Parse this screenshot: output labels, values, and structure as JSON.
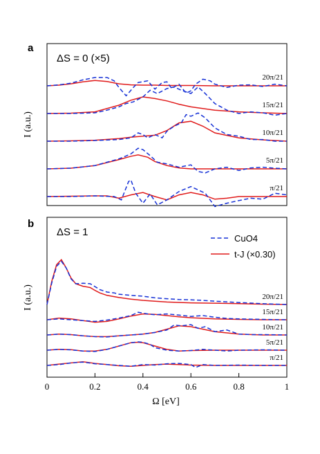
{
  "colors": {
    "cuo4": "#1530d6",
    "tj": "#e01a1a",
    "frame": "#000000"
  },
  "chart_data": [
    {
      "panel": "a",
      "type": "line",
      "title": "ΔS = 0 (×5)",
      "xlabel": "",
      "ylabel": "I (a.u.)",
      "xlim": [
        0,
        1
      ],
      "xticks": [],
      "legend": null,
      "traces": [
        {
          "k": "20π/21",
          "offset": 4,
          "cuo4": {
            "x": [
              0,
              0.05,
              0.1,
              0.15,
              0.2,
              0.25,
              0.28,
              0.3,
              0.33,
              0.36,
              0.38,
              0.42,
              0.45,
              0.48,
              0.5,
              0.52,
              0.55,
              0.58,
              0.6,
              0.62,
              0.65,
              0.68,
              0.7,
              0.75,
              0.8,
              0.85,
              0.9,
              0.95,
              1.0
            ],
            "y": [
              0,
              0.03,
              0.08,
              0.18,
              0.25,
              0.25,
              0.15,
              -0.05,
              -0.3,
              -0.05,
              0.1,
              0.15,
              -0.1,
              0.1,
              0.12,
              -0.08,
              0.05,
              -0.22,
              -0.15,
              0.05,
              0.2,
              0.15,
              0.05,
              -0.05,
              0.02,
              0.03,
              -0.02,
              0.05,
              0
            ]
          },
          "tj": {
            "x": [
              0,
              0.05,
              0.1,
              0.15,
              0.2,
              0.25,
              0.3,
              0.35,
              0.4,
              0.45,
              0.5,
              0.6,
              0.7,
              0.8,
              0.9,
              1.0
            ],
            "y": [
              0,
              0.02,
              0.06,
              0.12,
              0.16,
              0.13,
              0.06,
              0.03,
              0.02,
              0.02,
              0.01,
              0.01,
              0.0,
              0.0,
              0.0,
              0.0
            ]
          }
        },
        {
          "k": "15π/21",
          "offset": 3,
          "cuo4": {
            "x": [
              0,
              0.1,
              0.2,
              0.25,
              0.3,
              0.33,
              0.36,
              0.4,
              0.43,
              0.46,
              0.5,
              0.53,
              0.56,
              0.6,
              0.63,
              0.66,
              0.7,
              0.75,
              0.8,
              0.85,
              0.9,
              0.95,
              1.0
            ],
            "y": [
              0,
              0,
              0.02,
              0.1,
              0.2,
              0.3,
              0.35,
              0.5,
              0.7,
              0.6,
              0.75,
              0.8,
              0.7,
              0.6,
              0.8,
              0.6,
              0.3,
              0.1,
              0.0,
              0.05,
              0.02,
              -0.05,
              0
            ]
          },
          "tj": {
            "x": [
              0,
              0.1,
              0.2,
              0.3,
              0.35,
              0.4,
              0.45,
              0.5,
              0.55,
              0.6,
              0.7,
              0.8,
              0.9,
              1.0
            ],
            "y": [
              0,
              0.01,
              0.05,
              0.25,
              0.4,
              0.5,
              0.45,
              0.38,
              0.28,
              0.2,
              0.1,
              0.05,
              0.02,
              0
            ]
          }
        },
        {
          "k": "10π/21",
          "offset": 2,
          "cuo4": {
            "x": [
              0,
              0.1,
              0.2,
              0.3,
              0.35,
              0.38,
              0.4,
              0.42,
              0.45,
              0.48,
              0.5,
              0.53,
              0.56,
              0.58,
              0.6,
              0.63,
              0.66,
              0.7,
              0.75,
              0.8,
              0.85,
              0.9,
              0.95,
              1.0
            ],
            "y": [
              0,
              0,
              0.02,
              0.05,
              0.1,
              0.25,
              0.2,
              0.1,
              0.2,
              0.1,
              0.3,
              0.45,
              0.55,
              0.8,
              0.75,
              0.85,
              0.7,
              0.4,
              0.2,
              0.15,
              0.05,
              0.05,
              0.0,
              0
            ]
          },
          "tj": {
            "x": [
              0,
              0.1,
              0.2,
              0.3,
              0.35,
              0.4,
              0.45,
              0.5,
              0.55,
              0.6,
              0.65,
              0.7,
              0.8,
              0.9,
              1.0
            ],
            "y": [
              0,
              0.01,
              0.03,
              0.08,
              0.12,
              0.15,
              0.18,
              0.32,
              0.55,
              0.6,
              0.45,
              0.25,
              0.1,
              0.04,
              0
            ]
          }
        },
        {
          "k": "5π/21",
          "offset": 1,
          "cuo4": {
            "x": [
              0,
              0.1,
              0.2,
              0.3,
              0.35,
              0.38,
              0.4,
              0.43,
              0.46,
              0.5,
              0.55,
              0.6,
              0.63,
              0.66,
              0.7,
              0.75,
              0.8,
              0.85,
              0.9,
              0.95,
              1.0
            ],
            "y": [
              0,
              0.02,
              0.1,
              0.3,
              0.45,
              0.62,
              0.58,
              0.4,
              0.2,
              0.15,
              0.05,
              0.12,
              -0.08,
              -0.12,
              0.0,
              0.05,
              -0.05,
              0.03,
              0.05,
              0.02,
              0
            ]
          },
          "tj": {
            "x": [
              0,
              0.1,
              0.2,
              0.3,
              0.35,
              0.38,
              0.42,
              0.45,
              0.5,
              0.55,
              0.6,
              0.7,
              0.8,
              0.9,
              1.0
            ],
            "y": [
              0,
              0.02,
              0.1,
              0.28,
              0.38,
              0.42,
              0.35,
              0.22,
              0.1,
              0.03,
              0.0,
              0.0,
              0.0,
              0.0,
              0
            ]
          }
        },
        {
          "k": "π/21",
          "offset": 0,
          "cuo4": {
            "x": [
              0,
              0.1,
              0.2,
              0.28,
              0.31,
              0.34,
              0.35,
              0.37,
              0.4,
              0.43,
              0.46,
              0.5,
              0.55,
              0.6,
              0.63,
              0.66,
              0.7,
              0.75,
              0.8,
              0.85,
              0.9,
              0.95,
              1.0
            ],
            "y": [
              0,
              0,
              0.02,
              0.0,
              -0.1,
              0.45,
              0.5,
              0.1,
              -0.2,
              0.08,
              -0.25,
              -0.1,
              0.15,
              0.3,
              0.2,
              0.1,
              -0.3,
              -0.2,
              -0.12,
              -0.05,
              -0.08,
              0.1,
              0.05
            ]
          },
          "tj": {
            "x": [
              0,
              0.1,
              0.2,
              0.25,
              0.3,
              0.35,
              0.4,
              0.45,
              0.5,
              0.55,
              0.6,
              0.65,
              0.7,
              0.75,
              0.8,
              0.9,
              1.0
            ],
            "y": [
              0,
              0.01,
              0.02,
              0.02,
              -0.05,
              0.05,
              0.12,
              0.0,
              -0.1,
              0.05,
              0.12,
              0.05,
              -0.08,
              -0.05,
              0.0,
              0.0,
              0
            ]
          }
        }
      ]
    },
    {
      "panel": "b",
      "type": "line",
      "title": "ΔS = 1",
      "xlabel": "Ω [eV]",
      "ylabel": "I (a.u.)",
      "xlim": [
        0,
        1
      ],
      "xticks": [
        "0",
        "0.2",
        "0.4",
        "0.6",
        "0.8",
        "1"
      ],
      "legend": {
        "position": "top-right",
        "entries": [
          "CuO4",
          "t-J (×0.30)"
        ]
      },
      "traces": [
        {
          "k": "20π/21",
          "offset": 4,
          "cuo4": {
            "x": [
              0,
              0.02,
              0.04,
              0.06,
              0.08,
              0.1,
              0.12,
              0.15,
              0.18,
              0.2,
              0.22,
              0.25,
              0.28,
              0.3,
              0.35,
              0.4,
              0.45,
              0.5,
              0.55,
              0.6,
              0.65,
              0.7,
              0.8,
              0.9,
              1.0
            ],
            "y": [
              0,
              1.3,
              2.3,
              2.6,
              2.2,
              1.55,
              1.25,
              1.28,
              1.25,
              1.08,
              0.9,
              0.75,
              0.7,
              0.62,
              0.55,
              0.5,
              0.4,
              0.35,
              0.3,
              0.28,
              0.25,
              0.2,
              0.12,
              0.05,
              0
            ]
          },
          "tj": {
            "x": [
              0,
              0.02,
              0.04,
              0.06,
              0.08,
              0.1,
              0.12,
              0.15,
              0.18,
              0.2,
              0.22,
              0.25,
              0.3,
              0.35,
              0.4,
              0.45,
              0.5,
              0.6,
              0.7,
              0.8,
              0.9,
              1.0
            ],
            "y": [
              0,
              1.4,
              2.4,
              2.7,
              2.2,
              1.6,
              1.25,
              1.1,
              1.02,
              0.85,
              0.7,
              0.55,
              0.42,
              0.32,
              0.25,
              0.2,
              0.15,
              0.1,
              0.08,
              0.05,
              0.02,
              0
            ]
          }
        },
        {
          "k": "15π/21",
          "offset": 3,
          "cuo4": {
            "x": [
              0,
              0.05,
              0.1,
              0.15,
              0.2,
              0.25,
              0.3,
              0.35,
              0.38,
              0.4,
              0.42,
              0.45,
              0.5,
              0.55,
              0.6,
              0.65,
              0.7,
              0.75,
              0.8,
              0.9,
              1.0
            ],
            "y": [
              0,
              0.05,
              0.0,
              -0.05,
              -0.1,
              -0.02,
              0.1,
              0.25,
              0.45,
              0.4,
              0.35,
              0.3,
              0.35,
              0.28,
              0.2,
              0.25,
              0.15,
              0.08,
              0.05,
              0.02,
              0
            ]
          },
          "tj": {
            "x": [
              0,
              0.05,
              0.1,
              0.15,
              0.2,
              0.25,
              0.3,
              0.35,
              0.4,
              0.45,
              0.5,
              0.55,
              0.6,
              0.7,
              0.8,
              0.9,
              1.0
            ],
            "y": [
              0,
              0.1,
              0.05,
              -0.05,
              -0.15,
              -0.1,
              0.05,
              0.22,
              0.35,
              0.32,
              0.25,
              0.18,
              0.12,
              0.05,
              0.02,
              0.0,
              0
            ]
          }
        },
        {
          "k": "10π/21",
          "offset": 2,
          "cuo4": {
            "x": [
              0,
              0.05,
              0.1,
              0.15,
              0.2,
              0.25,
              0.3,
              0.35,
              0.4,
              0.45,
              0.5,
              0.53,
              0.56,
              0.6,
              0.63,
              0.66,
              0.7,
              0.75,
              0.8,
              0.85,
              0.9,
              1.0
            ],
            "y": [
              0,
              0.05,
              0.02,
              -0.05,
              -0.1,
              -0.12,
              -0.05,
              0.0,
              0.05,
              0.15,
              0.3,
              0.6,
              0.55,
              0.62,
              0.4,
              0.5,
              0.2,
              0.3,
              0.05,
              0.02,
              0.02,
              0
            ]
          },
          "tj": {
            "x": [
              0,
              0.05,
              0.1,
              0.15,
              0.2,
              0.25,
              0.3,
              0.35,
              0.4,
              0.45,
              0.5,
              0.55,
              0.6,
              0.65,
              0.7,
              0.8,
              0.9,
              1.0
            ],
            "y": [
              0,
              0.05,
              0.02,
              -0.05,
              -0.1,
              -0.1,
              -0.05,
              0.0,
              0.05,
              0.15,
              0.35,
              0.55,
              0.5,
              0.35,
              0.2,
              0.05,
              0.0,
              0
            ]
          }
        },
        {
          "k": "5π/21",
          "offset": 1,
          "cuo4": {
            "x": [
              0,
              0.05,
              0.1,
              0.15,
              0.2,
              0.25,
              0.3,
              0.35,
              0.38,
              0.4,
              0.43,
              0.45,
              0.5,
              0.55,
              0.6,
              0.65,
              0.7,
              0.75,
              0.8,
              0.9,
              1.0
            ],
            "y": [
              0,
              0.05,
              0.02,
              -0.05,
              -0.08,
              0.05,
              0.25,
              0.45,
              0.5,
              0.48,
              0.35,
              0.15,
              0.0,
              -0.05,
              -0.02,
              0.05,
              0.0,
              -0.05,
              0.0,
              0.02,
              0
            ]
          },
          "tj": {
            "x": [
              0,
              0.05,
              0.1,
              0.15,
              0.2,
              0.25,
              0.3,
              0.35,
              0.38,
              0.4,
              0.45,
              0.5,
              0.55,
              0.6,
              0.7,
              0.8,
              0.9,
              1.0
            ],
            "y": [
              0,
              0.05,
              0.03,
              -0.05,
              -0.05,
              0.05,
              0.25,
              0.45,
              0.48,
              0.45,
              0.25,
              0.05,
              -0.05,
              -0.02,
              0.0,
              0.0,
              0.0,
              0
            ]
          }
        },
        {
          "k": "π/21",
          "offset": 0,
          "cuo4": {
            "x": [
              0,
              0.05,
              0.1,
              0.15,
              0.2,
              0.25,
              0.3,
              0.35,
              0.4,
              0.45,
              0.5,
              0.55,
              0.6,
              0.62,
              0.65,
              0.7,
              0.8,
              0.9,
              1.0
            ],
            "y": [
              0,
              0.05,
              0.15,
              0.2,
              0.1,
              0.05,
              0.0,
              -0.05,
              0.05,
              0.02,
              0.1,
              0.12,
              0.05,
              -0.12,
              0.05,
              0.0,
              0.02,
              0.0,
              0
            ]
          },
          "tj": {
            "x": [
              0,
              0.05,
              0.1,
              0.15,
              0.2,
              0.25,
              0.3,
              0.35,
              0.4,
              0.45,
              0.5,
              0.55,
              0.6,
              0.7,
              0.8,
              0.9,
              1.0
            ],
            "y": [
              0,
              0.08,
              0.15,
              0.22,
              0.12,
              0.05,
              -0.02,
              -0.05,
              0.0,
              0.05,
              0.08,
              0.05,
              0.02,
              0.0,
              0.0,
              0.0,
              0
            ]
          }
        }
      ]
    }
  ],
  "labels": {
    "panel_a_letter": "a",
    "panel_b_letter": "b",
    "legend_cuo4": "CuO4",
    "legend_tj": "t-J (×0.30)"
  }
}
